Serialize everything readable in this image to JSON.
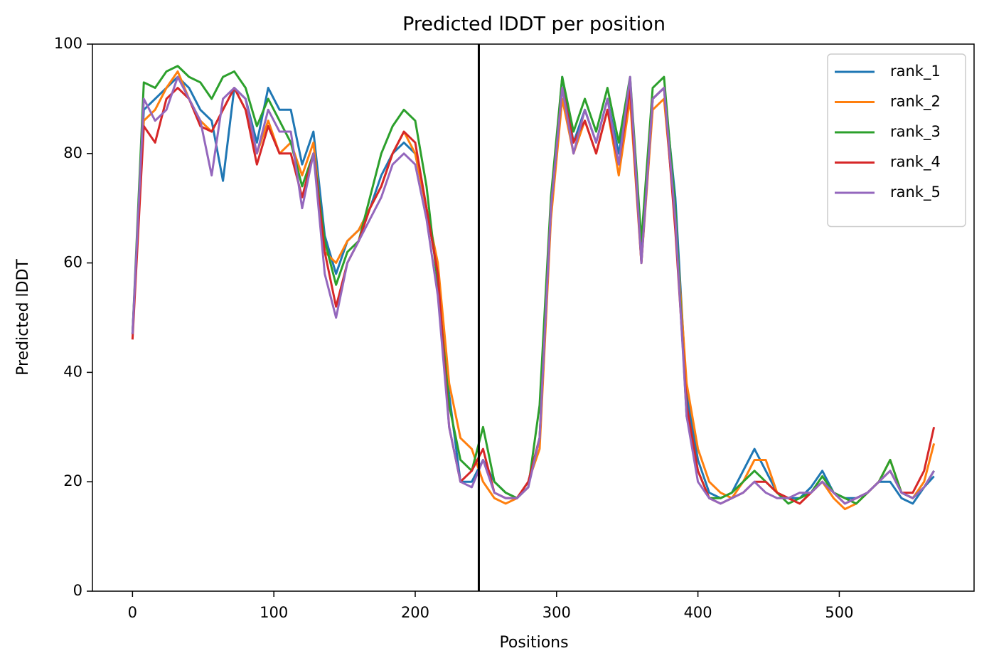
{
  "chart_data": {
    "type": "line",
    "title": "Predicted lDDT per position",
    "xlabel": "Positions",
    "ylabel": "Predicted lDDT",
    "x": [
      0,
      8,
      16,
      24,
      32,
      40,
      48,
      56,
      64,
      72,
      80,
      88,
      96,
      104,
      112,
      120,
      128,
      136,
      144,
      152,
      160,
      168,
      176,
      184,
      192,
      200,
      208,
      216,
      224,
      232,
      240,
      248,
      256,
      264,
      272,
      280,
      288,
      296,
      304,
      312,
      320,
      328,
      336,
      344,
      352,
      360,
      368,
      376,
      384,
      392,
      400,
      408,
      416,
      424,
      432,
      440,
      448,
      456,
      464,
      472,
      480,
      488,
      496,
      504,
      512,
      520,
      528,
      536,
      544,
      552,
      560,
      567
    ],
    "series": [
      {
        "name": "rank_1",
        "color": "#1f77b4",
        "values": [
          47,
          88,
          90,
          92,
          94,
          92,
          88,
          86,
          75,
          92,
          90,
          82,
          92,
          88,
          88,
          78,
          84,
          65,
          58,
          64,
          66,
          70,
          76,
          80,
          82,
          80,
          70,
          58,
          36,
          20,
          20,
          24,
          20,
          18,
          17,
          20,
          28,
          70,
          94,
          82,
          88,
          82,
          90,
          80,
          92,
          62,
          90,
          92,
          72,
          36,
          24,
          18,
          17,
          18,
          22,
          26,
          22,
          18,
          17,
          17,
          19,
          22,
          18,
          17,
          17,
          18,
          20,
          20,
          17,
          16,
          19,
          21
        ]
      },
      {
        "name": "rank_2",
        "color": "#ff7f0e",
        "values": [
          47,
          86,
          88,
          92,
          95,
          90,
          86,
          84,
          88,
          92,
          88,
          80,
          86,
          80,
          82,
          76,
          82,
          62,
          60,
          64,
          66,
          70,
          74,
          80,
          84,
          80,
          70,
          60,
          38,
          28,
          26,
          20,
          17,
          16,
          17,
          20,
          26,
          68,
          90,
          80,
          86,
          80,
          88,
          76,
          90,
          60,
          88,
          90,
          68,
          38,
          26,
          20,
          18,
          17,
          20,
          24,
          24,
          18,
          17,
          16,
          18,
          20,
          17,
          15,
          16,
          18,
          20,
          24,
          18,
          17,
          20,
          27
        ]
      },
      {
        "name": "rank_3",
        "color": "#2ca02c",
        "values": [
          47,
          93,
          92,
          95,
          96,
          94,
          93,
          90,
          94,
          95,
          92,
          85,
          90,
          86,
          82,
          74,
          80,
          64,
          56,
          62,
          64,
          72,
          80,
          85,
          88,
          86,
          74,
          56,
          34,
          24,
          22,
          30,
          20,
          18,
          17,
          19,
          34,
          72,
          94,
          84,
          90,
          84,
          92,
          82,
          94,
          64,
          92,
          94,
          70,
          32,
          22,
          17,
          17,
          18,
          20,
          22,
          20,
          18,
          16,
          17,
          18,
          21,
          18,
          17,
          16,
          18,
          20,
          24,
          18,
          17,
          19,
          22
        ]
      },
      {
        "name": "rank_4",
        "color": "#d62728",
        "values": [
          46,
          85,
          82,
          90,
          92,
          90,
          85,
          84,
          88,
          92,
          88,
          78,
          85,
          80,
          80,
          72,
          80,
          62,
          52,
          60,
          64,
          70,
          74,
          80,
          84,
          82,
          70,
          58,
          30,
          20,
          22,
          26,
          18,
          17,
          17,
          20,
          28,
          70,
          92,
          82,
          86,
          80,
          88,
          78,
          92,
          60,
          90,
          92,
          66,
          34,
          22,
          17,
          16,
          17,
          18,
          20,
          20,
          18,
          17,
          16,
          18,
          20,
          18,
          16,
          17,
          18,
          20,
          22,
          18,
          18,
          22,
          30
        ]
      },
      {
        "name": "rank_5",
        "color": "#9467bd",
        "values": [
          47,
          90,
          86,
          88,
          94,
          90,
          86,
          76,
          90,
          92,
          90,
          80,
          88,
          84,
          84,
          70,
          80,
          58,
          50,
          60,
          64,
          68,
          72,
          78,
          80,
          78,
          68,
          54,
          30,
          20,
          19,
          24,
          18,
          17,
          17,
          19,
          28,
          70,
          92,
          80,
          88,
          82,
          90,
          78,
          94,
          60,
          90,
          92,
          68,
          32,
          20,
          17,
          16,
          17,
          18,
          20,
          18,
          17,
          17,
          18,
          18,
          20,
          18,
          16,
          17,
          18,
          20,
          22,
          18,
          17,
          19,
          22
        ]
      }
    ],
    "xlim": [
      -28.35,
      595.35
    ],
    "ylim": [
      0,
      100
    ],
    "xticks": [
      0,
      100,
      200,
      300,
      400,
      500
    ],
    "yticks": [
      0,
      20,
      40,
      60,
      80,
      100
    ],
    "vline": 245,
    "legend": "upper right",
    "grid": false
  }
}
